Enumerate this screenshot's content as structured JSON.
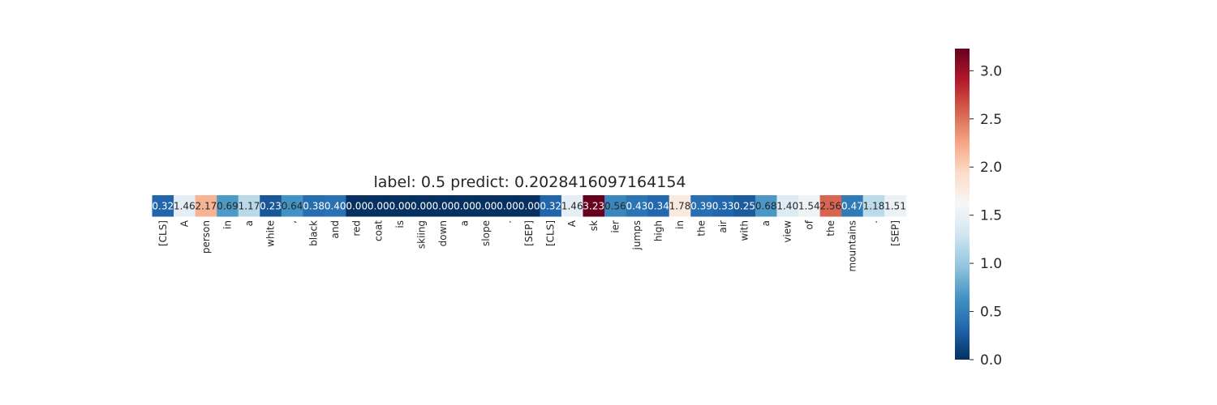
{
  "chart_data": {
    "type": "heatmap",
    "title": "label: 0.5 predict: 0.2028416097164154",
    "xlabel": "",
    "ylabel": "",
    "tokens": [
      "[CLS]",
      "A",
      "person",
      "in",
      "a",
      "white",
      ",",
      "black",
      "and",
      "red",
      "coat",
      "is",
      "skiing",
      "down",
      "a",
      "slope",
      ".",
      "[SEP]",
      "[CLS]",
      "A",
      "sk",
      "ier",
      "jumps",
      "high",
      "in",
      "the",
      "air",
      "with",
      "a",
      "view",
      "of",
      "the",
      "mountains",
      ".",
      "[SEP]"
    ],
    "values": [
      0.32,
      1.46,
      2.17,
      0.69,
      1.17,
      0.23,
      0.64,
      0.38,
      0.4,
      0.0,
      0.0,
      0.0,
      0.0,
      0.0,
      0.0,
      0.0,
      0.0,
      0.0,
      0.32,
      1.46,
      3.23,
      0.56,
      0.43,
      0.34,
      1.78,
      0.39,
      0.33,
      0.25,
      0.68,
      1.4,
      1.54,
      2.56,
      0.47,
      1.18,
      1.51
    ],
    "value_labels": [
      "0.32",
      "1.46",
      "2.17",
      "0.69",
      "1.17",
      "0.23",
      "0.64",
      "0.38",
      "0.40",
      "0.00",
      "0.00",
      "0.00",
      "0.00",
      "0.00",
      "0.00",
      "0.00",
      "0.00",
      "0.00",
      "0.32",
      "1.46",
      "3.23",
      "0.56",
      "0.43",
      "0.34",
      "1.78",
      "0.39",
      "0.33",
      "0.25",
      "0.68",
      "1.40",
      "1.54",
      "2.56",
      "0.47",
      "1.18",
      "1.51"
    ],
    "colormap": "RdBu_r",
    "vmin": 0.0,
    "vmax": 3.23,
    "colorbar": {
      "ticks": [
        0.0,
        0.5,
        1.0,
        1.5,
        2.0,
        2.5,
        3.0
      ],
      "tick_labels": [
        "0.0",
        "0.5",
        "1.0",
        "1.5",
        "2.0",
        "2.5",
        "3.0"
      ]
    },
    "grid": false,
    "legend": "none"
  }
}
